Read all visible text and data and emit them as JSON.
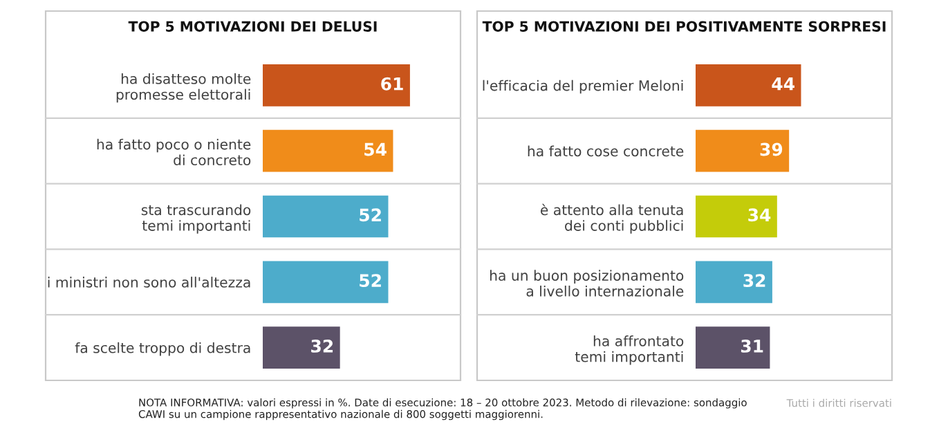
{
  "chart_data": [
    {
      "type": "bar",
      "orientation": "horizontal",
      "title": "TOP 5 MOTIVAZIONI DEI DELUSI",
      "categories": [
        "ha disatteso molte\npromesse elettorali",
        "ha fatto poco o niente\ndi concreto",
        "sta trascurando\ntemi importanti",
        "i ministri non sono all'altezza",
        "fa scelte troppo di destra"
      ],
      "values": [
        61,
        54,
        52,
        52,
        32
      ],
      "colors": [
        "#c9551b",
        "#f08c1a",
        "#4daccb",
        "#4daccb",
        "#5c5268"
      ],
      "data_labels": true,
      "tick_labels": "y"
    },
    {
      "type": "bar",
      "orientation": "horizontal",
      "title": "TOP 5 MOTIVAZIONI DEI POSITIVAMENTE SORPRESI",
      "categories": [
        "l'efficacia del premier Meloni",
        "ha fatto cose concrete",
        "è attento alla tenuta\ndei conti pubblici",
        "ha un buon posizionamento\na livello internazionale",
        "ha affrontato\ntemi importanti"
      ],
      "values": [
        44,
        39,
        34,
        32,
        31
      ],
      "colors": [
        "#c9551b",
        "#f08c1a",
        "#c4cc0a",
        "#4daccb",
        "#5c5268"
      ],
      "data_labels": true,
      "tick_labels": "y",
      "annotations": [
        "NOTA INFORMATIVA: valori espressi in %. Date di esecuzione: 18 – 20 ottobre 2023. Metodo di rilevazione: sondaggio CAWI su un campione rappresentativo nazionale di 800 soggetti maggiorenni.",
        "Tutti i diritti riservati"
      ]
    }
  ]
}
